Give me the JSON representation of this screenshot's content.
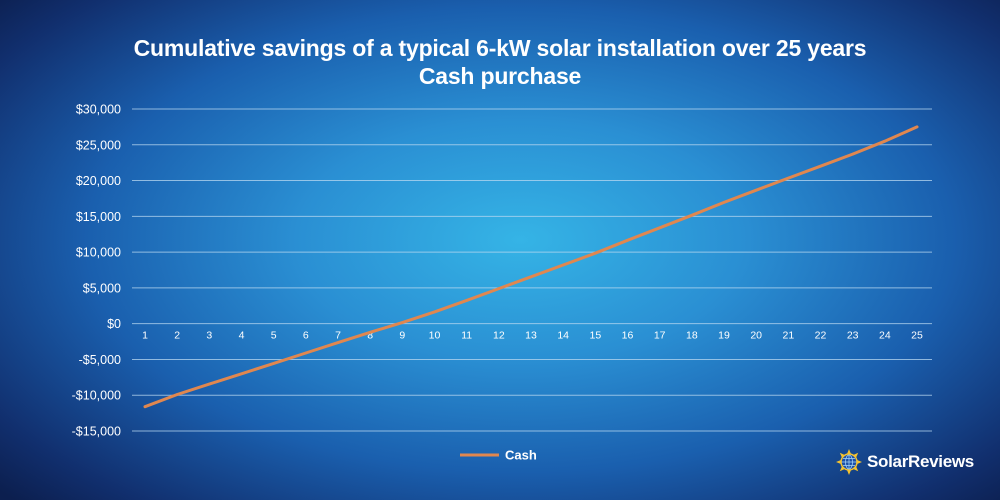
{
  "chart_data": {
    "type": "line",
    "title": "Cumulative savings of a typical 6-kW solar installation over 25 years",
    "subtitle": "Cash purchase",
    "x": [
      1,
      2,
      3,
      4,
      5,
      6,
      7,
      8,
      9,
      10,
      11,
      12,
      13,
      14,
      15,
      16,
      17,
      18,
      19,
      20,
      21,
      22,
      23,
      24,
      25
    ],
    "series": [
      {
        "name": "Cash",
        "color": "#e0874f",
        "values": [
          -11600,
          -9900,
          -8450,
          -7000,
          -5550,
          -4100,
          -2650,
          -1200,
          150,
          1650,
          3250,
          4900,
          6550,
          8200,
          9850,
          11650,
          13400,
          15150,
          16950,
          18650,
          20350,
          22000,
          23700,
          25500,
          27500
        ]
      }
    ],
    "y_ticks": [
      30000,
      25000,
      20000,
      15000,
      10000,
      5000,
      0,
      -5000,
      -10000,
      -15000
    ],
    "y_tick_labels": [
      "$30,000",
      "$25,000",
      "$20,000",
      "$15,000",
      "$10,000",
      "$5,000",
      "$0",
      "-$5,000",
      "-$10,000",
      "-$15,000"
    ],
    "ylim": [
      -15000,
      30000
    ],
    "xlabel": "",
    "ylabel": "",
    "grid": true,
    "legend": "bottom-center"
  },
  "branding": {
    "logo_text": "SolarReviews"
  },
  "colors": {
    "line": "#e0874f",
    "grid": "#b9d8f0",
    "text": "#ffffff"
  }
}
